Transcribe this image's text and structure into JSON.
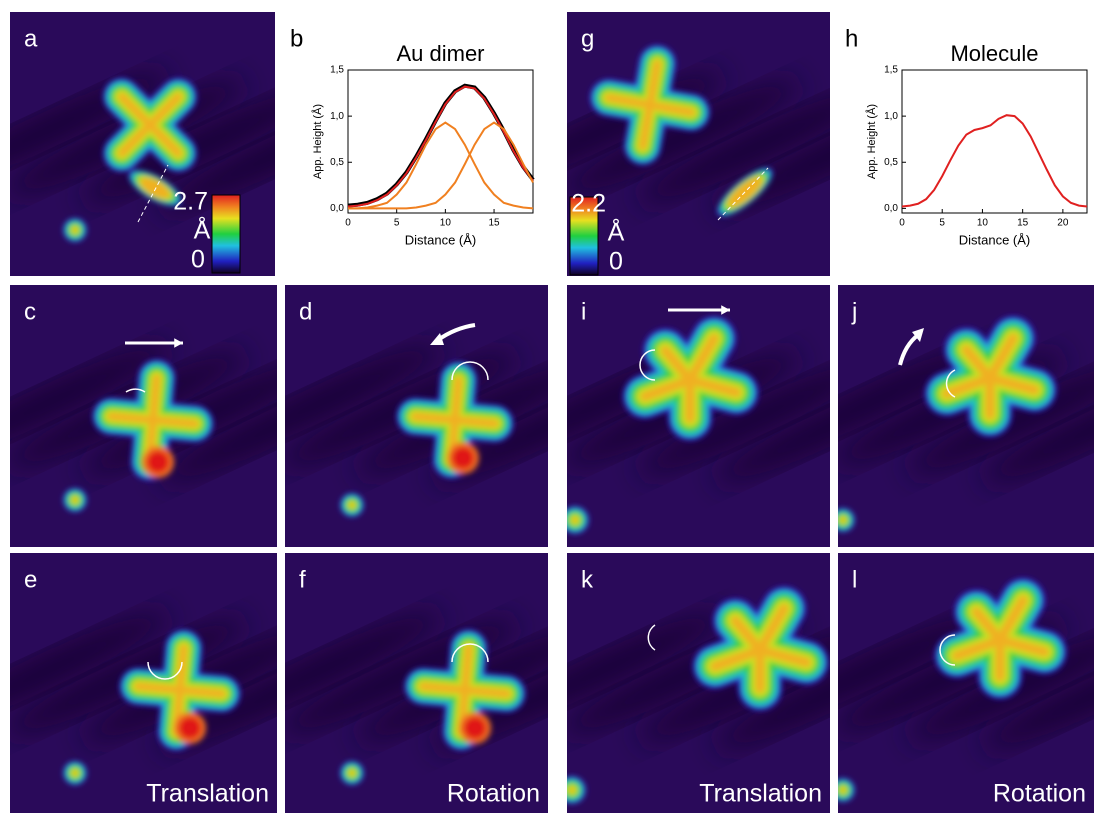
{
  "panel_labels": [
    "a",
    "b",
    "c",
    "d",
    "e",
    "f",
    "g",
    "h",
    "i",
    "j",
    "k",
    "l"
  ],
  "colorbars": [
    {
      "max": "2.7",
      "unit": "Å",
      "min": "0"
    },
    {
      "max": "2.2",
      "unit": "Å",
      "min": "0"
    }
  ],
  "captions": [
    "Translation",
    "Rotation",
    "Translation",
    "Rotation"
  ],
  "chart_data": [
    {
      "type": "line",
      "title": "Au dimer",
      "x_label": "Distance (Å)",
      "y_label": "App. Height (Å)",
      "x": [
        0,
        1,
        2,
        3,
        4,
        5,
        6,
        7,
        8,
        9,
        10,
        11,
        12,
        13,
        14,
        15,
        16,
        17,
        18,
        19
      ],
      "series": [
        {
          "color": "#000000",
          "values": [
            0.03,
            0.04,
            0.06,
            0.1,
            0.16,
            0.26,
            0.39,
            0.56,
            0.75,
            0.95,
            1.14,
            1.27,
            1.33,
            1.31,
            1.2,
            1.03,
            0.84,
            0.63,
            0.45,
            0.31
          ]
        },
        {
          "color": "#e02020",
          "values": [
            0.02,
            0.03,
            0.05,
            0.09,
            0.15,
            0.25,
            0.38,
            0.55,
            0.74,
            0.94,
            1.13,
            1.26,
            1.32,
            1.3,
            1.19,
            1.02,
            0.83,
            0.62,
            0.44,
            0.3
          ]
        },
        {
          "color": "#f08020",
          "values": [
            0,
            0,
            0.01,
            0.03,
            0.06,
            0.15,
            0.28,
            0.48,
            0.69,
            0.86,
            0.93,
            0.86,
            0.69,
            0.48,
            0.28,
            0.15,
            0.06,
            0.03,
            0.01,
            0
          ]
        },
        {
          "color": "#f08020",
          "values": [
            0,
            0,
            0,
            0,
            0,
            0,
            0,
            0.01,
            0.03,
            0.06,
            0.15,
            0.28,
            0.48,
            0.69,
            0.86,
            0.93,
            0.86,
            0.69,
            0.48,
            0.28
          ]
        }
      ],
      "xlim": [
        0,
        19
      ],
      "xticks": [
        0,
        5,
        10,
        15
      ],
      "ylim": [
        -0.05,
        1.5
      ],
      "yticks": [
        {
          "value": 0,
          "label": "0,0"
        },
        {
          "value": 0.5,
          "label": "0,5"
        },
        {
          "value": 1,
          "label": "1,0"
        },
        {
          "value": 1.5,
          "label": "1,5"
        }
      ]
    },
    {
      "type": "line",
      "title": "Molecule",
      "x_label": "Distance (Å)",
      "y_label": "App. Height (Å)",
      "x": [
        0,
        1,
        2,
        3,
        4,
        5,
        6,
        7,
        8,
        9,
        10,
        11,
        12,
        13,
        14,
        15,
        16,
        17,
        18,
        19,
        20,
        21,
        22,
        23
      ],
      "series": [
        {
          "color": "#e02020",
          "values": [
            0.02,
            0.03,
            0.05,
            0.1,
            0.2,
            0.35,
            0.52,
            0.68,
            0.8,
            0.85,
            0.87,
            0.9,
            0.97,
            1.01,
            1.0,
            0.92,
            0.78,
            0.6,
            0.42,
            0.25,
            0.13,
            0.06,
            0.03,
            0.02
          ]
        }
      ],
      "xlim": [
        0,
        23
      ],
      "xticks": [
        0,
        5,
        10,
        15,
        20
      ],
      "ylim": [
        -0.05,
        1.5
      ],
      "yticks": [
        {
          "value": 0,
          "label": "0,0"
        },
        {
          "value": 0.5,
          "label": "0,5"
        },
        {
          "value": 1,
          "label": "1,0"
        },
        {
          "value": 1.5,
          "label": "1,5"
        }
      ]
    }
  ]
}
